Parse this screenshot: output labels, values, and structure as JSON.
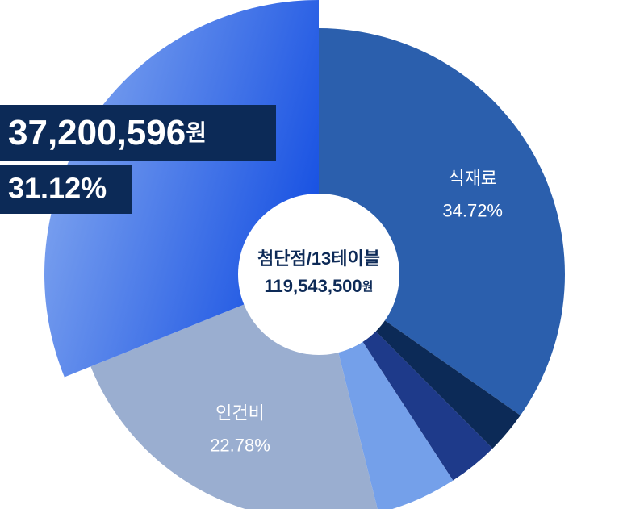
{
  "chart_data": {
    "type": "pie",
    "categories": [
      "식재료",
      null,
      null,
      null,
      "인건비",
      null
    ],
    "values": [
      34.72,
      2.8,
      3.3,
      5.28,
      22.78,
      31.12
    ],
    "value_labels": [
      "34.72%",
      null,
      null,
      null,
      "22.78%",
      "31.12%"
    ],
    "colors": [
      "#2b5fad",
      "#0c2a57",
      "#1e3a8a",
      "#74a0ea",
      "#9aaed0",
      "#1650e2"
    ],
    "highlight_index": 5,
    "highlight_amount": 37200596,
    "highlight_amount_label": "37,200,596",
    "unit": "원",
    "center_title": "첨단점/13테이블",
    "center_total": 119543500,
    "center_total_label": "119,543,500"
  }
}
